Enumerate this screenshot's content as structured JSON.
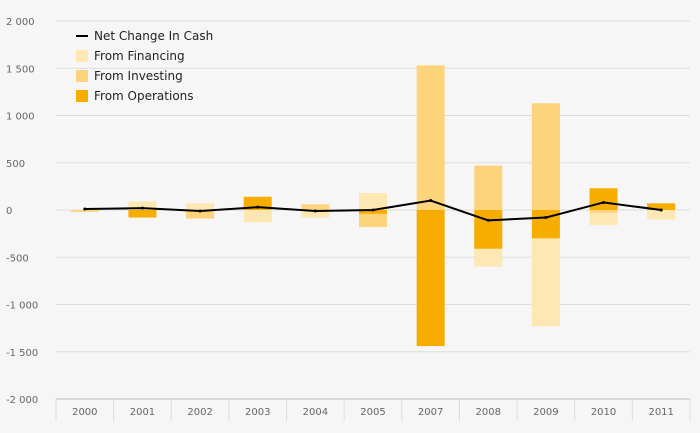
{
  "chart_data": {
    "type": "bar",
    "categories": [
      "2000",
      "2001",
      "2002",
      "2003",
      "2004",
      "2005",
      "2007",
      "2008",
      "2009",
      "2010",
      "2011"
    ],
    "ylim": [
      -2000,
      2000
    ],
    "yticks": [
      2000,
      1500,
      1000,
      500,
      0,
      -500,
      -1000,
      -1500,
      -2000
    ],
    "ytick_labels": [
      "2 000",
      "1 500",
      "1 000",
      "500",
      "0",
      "-500",
      "-1 000",
      "-1 500",
      "-2 000"
    ],
    "grid": true,
    "legend_position": "top-left",
    "series": [
      {
        "name": "From Financing",
        "kind": "bar",
        "color": "#fde7b3",
        "values": [
          -10,
          90,
          70,
          -130,
          -80,
          180,
          0,
          -600,
          -1230,
          -160,
          -100
        ]
      },
      {
        "name": "From Investing",
        "kind": "bar",
        "color": "#fdd47c",
        "values": [
          -20,
          -50,
          -90,
          50,
          60,
          -180,
          1530,
          470,
          1130,
          -30,
          70
        ]
      },
      {
        "name": "From Operations",
        "kind": "bar",
        "color": "#f7ad00",
        "values": [
          0,
          -80,
          0,
          140,
          0,
          -40,
          -1440,
          -410,
          -300,
          230,
          70
        ]
      },
      {
        "name": "Net Change In Cash",
        "kind": "line",
        "color": "#000000",
        "values": [
          10,
          20,
          -10,
          30,
          -10,
          0,
          100,
          -110,
          -80,
          80,
          0
        ]
      }
    ],
    "legend": [
      {
        "label": "Net Change In Cash",
        "marker": "line",
        "color": "#000000"
      },
      {
        "label": "From Financing",
        "marker": "box",
        "color": "#fde7b3"
      },
      {
        "label": "From Investing",
        "marker": "box",
        "color": "#fdd47c"
      },
      {
        "label": "From Operations",
        "marker": "box",
        "color": "#f7ad00"
      }
    ]
  }
}
